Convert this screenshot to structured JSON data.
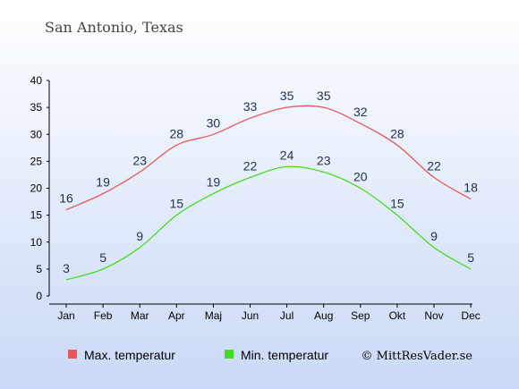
{
  "chart_data": {
    "type": "line",
    "title": "San Antonio, Texas",
    "categories": [
      "Jan",
      "Feb",
      "Mar",
      "Apr",
      "Maj",
      "Jun",
      "Jul",
      "Aug",
      "Sep",
      "Okt",
      "Nov",
      "Dec"
    ],
    "ylim": [
      0,
      40
    ],
    "yticks": [
      0,
      5,
      10,
      15,
      20,
      25,
      30,
      35,
      40
    ],
    "grid": false,
    "legend_position": "bottom",
    "series": [
      {
        "name": "Max. temperatur",
        "color": "#e85858",
        "values": [
          16,
          19,
          23,
          28,
          30,
          33,
          35,
          35,
          32,
          28,
          22,
          18
        ]
      },
      {
        "name": "Min. temperatur",
        "color": "#44dd22",
        "values": [
          3,
          5,
          9,
          15,
          19,
          22,
          24,
          23,
          20,
          15,
          9,
          5
        ]
      }
    ],
    "credit": "© MittResVader.se"
  }
}
